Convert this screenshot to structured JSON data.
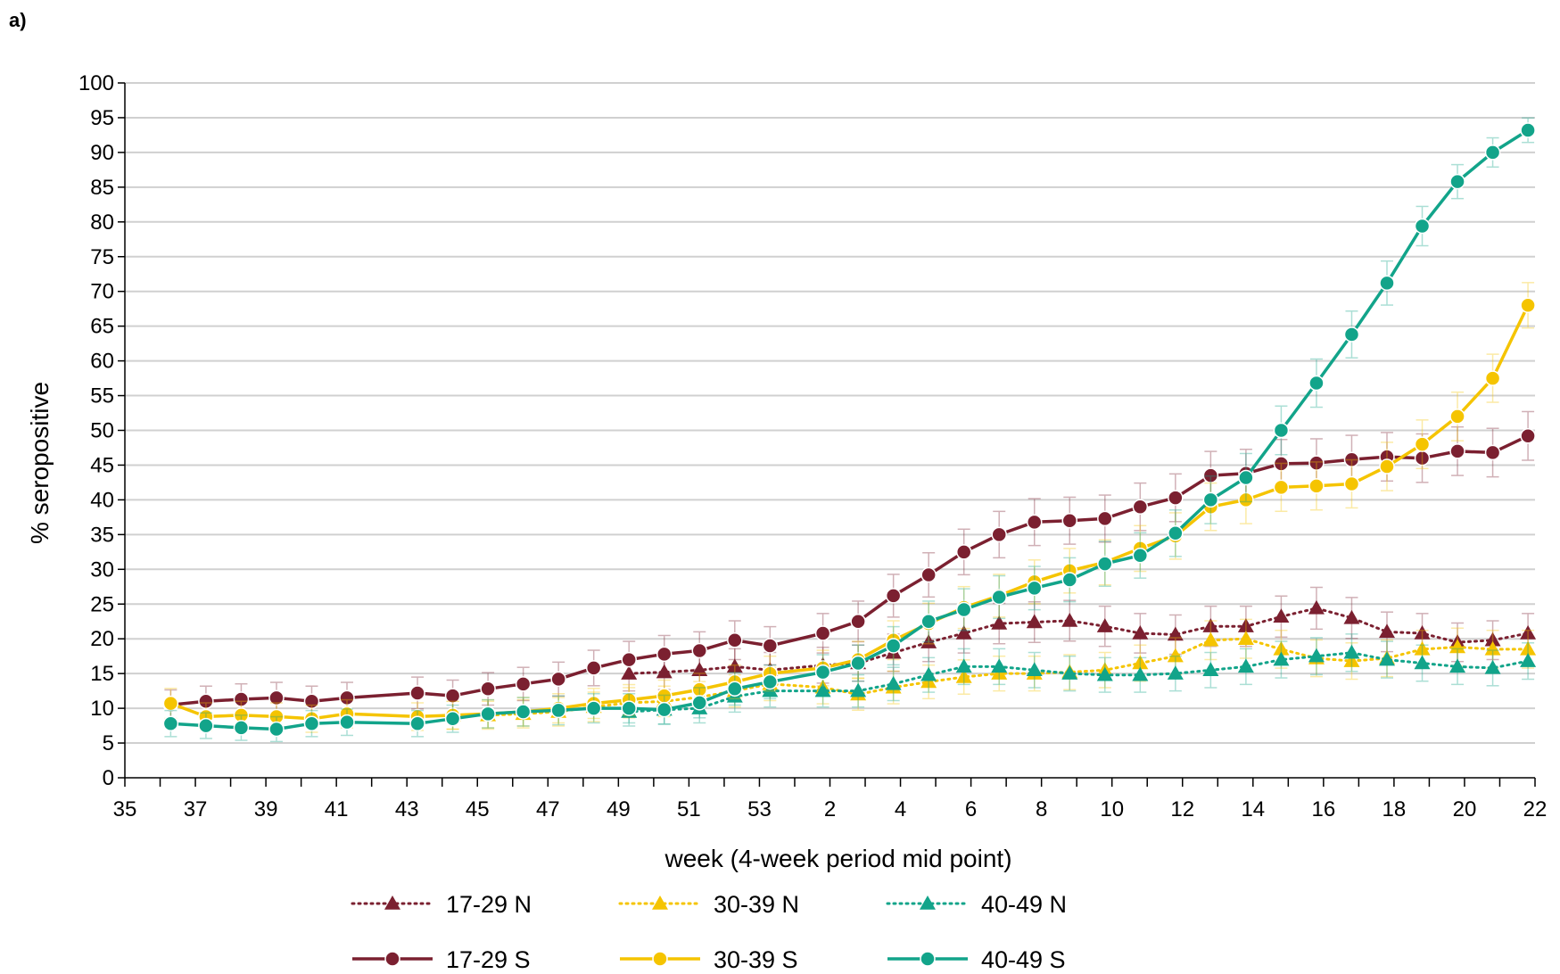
{
  "panel_label": "a)",
  "chart_data": {
    "type": "line",
    "title": "",
    "xlabel": "week (4-week period mid point)",
    "ylabel": "% seropositive",
    "ylim": [
      0,
      100
    ],
    "yticks": [
      0,
      5,
      10,
      15,
      20,
      25,
      30,
      35,
      40,
      45,
      50,
      55,
      60,
      65,
      70,
      75,
      80,
      85,
      90,
      95,
      100
    ],
    "xticks": [
      "35",
      "37",
      "39",
      "41",
      "43",
      "45",
      "47",
      "49",
      "51",
      "53",
      "2",
      "4",
      "6",
      "8",
      "10",
      "12",
      "14",
      "16",
      "18",
      "20",
      "22"
    ],
    "x_axis_note": "weeks run 35–53 then continue 1–22 of the following year",
    "grid": "horizontal",
    "legend_position": "bottom",
    "series": [
      {
        "name": "17-29 N",
        "color": "#7b2030",
        "line": "dotted",
        "marker": "triangle",
        "points": [
          [
            49.3,
            15.0
          ],
          [
            50.3,
            15.2
          ],
          [
            51.3,
            15.5
          ],
          [
            52.3,
            16.0
          ],
          [
            53.3,
            15.5
          ],
          [
            1.3,
            16.2
          ],
          [
            2.3,
            16.5
          ],
          [
            3.3,
            18.0
          ],
          [
            4.3,
            19.5
          ],
          [
            5.3,
            20.8
          ],
          [
            6.3,
            22.2
          ],
          [
            7.3,
            22.4
          ],
          [
            8.3,
            22.6
          ],
          [
            9.3,
            21.8
          ],
          [
            10.3,
            20.8
          ],
          [
            11.3,
            20.6
          ],
          [
            12.3,
            21.8
          ],
          [
            13.3,
            21.8
          ],
          [
            14.3,
            23.2
          ],
          [
            15.3,
            24.4
          ],
          [
            16.3,
            23.0
          ],
          [
            17.3,
            21.0
          ],
          [
            18.3,
            20.8
          ],
          [
            19.3,
            19.5
          ],
          [
            20.3,
            19.8
          ],
          [
            21.3,
            20.8
          ]
        ]
      },
      {
        "name": "30-39 N",
        "color": "#f5c400",
        "line": "dotted",
        "marker": "triangle",
        "points": [
          [
            44.3,
            9.0
          ],
          [
            45.3,
            9.0
          ],
          [
            46.3,
            9.2
          ],
          [
            47.3,
            9.5
          ],
          [
            48.3,
            10.2
          ],
          [
            49.3,
            10.8
          ],
          [
            50.3,
            11.0
          ],
          [
            51.3,
            11.6
          ],
          [
            52.3,
            12.5
          ],
          [
            53.3,
            13.5
          ],
          [
            1.3,
            13.0
          ],
          [
            2.3,
            12.0
          ],
          [
            3.3,
            13.0
          ],
          [
            4.3,
            13.8
          ],
          [
            5.3,
            14.5
          ],
          [
            6.3,
            15.0
          ],
          [
            7.3,
            15.0
          ],
          [
            8.3,
            15.2
          ],
          [
            9.3,
            15.5
          ],
          [
            10.3,
            16.5
          ],
          [
            11.3,
            17.5
          ],
          [
            12.3,
            19.8
          ],
          [
            13.3,
            20.0
          ],
          [
            14.3,
            18.5
          ],
          [
            15.3,
            17.2
          ],
          [
            16.3,
            16.8
          ],
          [
            17.3,
            17.2
          ],
          [
            18.3,
            18.5
          ],
          [
            19.3,
            18.8
          ],
          [
            20.3,
            18.5
          ],
          [
            21.3,
            18.5
          ]
        ]
      },
      {
        "name": "40-49 N",
        "color": "#12a48a",
        "line": "dotted",
        "marker": "triangle",
        "points": [
          [
            49.3,
            9.5
          ],
          [
            50.3,
            9.8
          ],
          [
            51.3,
            10.0
          ],
          [
            52.3,
            11.7
          ],
          [
            53.3,
            12.5
          ],
          [
            1.3,
            12.5
          ],
          [
            2.3,
            12.5
          ],
          [
            3.3,
            13.5
          ],
          [
            4.3,
            14.8
          ],
          [
            5.3,
            16.0
          ],
          [
            6.3,
            16.0
          ],
          [
            7.3,
            15.5
          ],
          [
            8.3,
            15.0
          ],
          [
            9.3,
            14.8
          ],
          [
            10.3,
            14.8
          ],
          [
            11.3,
            15.0
          ],
          [
            12.3,
            15.5
          ],
          [
            13.3,
            16.0
          ],
          [
            14.3,
            17.0
          ],
          [
            15.3,
            17.5
          ],
          [
            16.3,
            18.0
          ],
          [
            17.3,
            17.0
          ],
          [
            18.3,
            16.5
          ],
          [
            19.3,
            16.0
          ],
          [
            20.3,
            15.8
          ],
          [
            21.3,
            16.8
          ]
        ]
      },
      {
        "name": "17-29 S",
        "color": "#7b2030",
        "line": "solid",
        "marker": "circle",
        "points": [
          [
            36.3,
            10.5
          ],
          [
            37.3,
            11.0
          ],
          [
            38.3,
            11.3
          ],
          [
            39.3,
            11.5
          ],
          [
            40.3,
            11.0
          ],
          [
            41.3,
            11.5
          ],
          [
            43.3,
            12.2
          ],
          [
            44.3,
            11.8
          ],
          [
            45.3,
            12.8
          ],
          [
            46.3,
            13.5
          ],
          [
            47.3,
            14.2
          ],
          [
            48.3,
            15.8
          ],
          [
            49.3,
            17.0
          ],
          [
            50.3,
            17.8
          ],
          [
            51.3,
            18.3
          ],
          [
            52.3,
            19.8
          ],
          [
            53.3,
            19.0
          ],
          [
            1.3,
            20.8
          ],
          [
            2.3,
            22.5
          ],
          [
            3.3,
            26.2
          ],
          [
            4.3,
            29.2
          ],
          [
            5.3,
            32.5
          ],
          [
            6.3,
            35.0
          ],
          [
            7.3,
            36.8
          ],
          [
            8.3,
            37.0
          ],
          [
            9.3,
            37.3
          ],
          [
            10.3,
            39.0
          ],
          [
            11.3,
            40.3
          ],
          [
            12.3,
            43.5
          ],
          [
            13.3,
            43.8
          ],
          [
            14.3,
            45.2
          ],
          [
            15.3,
            45.3
          ],
          [
            16.3,
            45.8
          ],
          [
            17.3,
            46.2
          ],
          [
            18.3,
            46.0
          ],
          [
            19.3,
            47.0
          ],
          [
            20.3,
            46.8
          ],
          [
            21.3,
            49.2
          ]
        ]
      },
      {
        "name": "30-39 S",
        "color": "#f5c400",
        "line": "solid",
        "marker": "circle",
        "points": [
          [
            36.3,
            10.7
          ],
          [
            37.3,
            8.8
          ],
          [
            38.3,
            9.0
          ],
          [
            39.3,
            8.8
          ],
          [
            40.3,
            8.5
          ],
          [
            41.3,
            9.2
          ],
          [
            43.3,
            8.8
          ],
          [
            44.3,
            9.0
          ],
          [
            45.3,
            9.2
          ],
          [
            46.3,
            9.5
          ],
          [
            47.3,
            10.0
          ],
          [
            48.3,
            10.7
          ],
          [
            49.3,
            11.2
          ],
          [
            50.3,
            11.8
          ],
          [
            51.3,
            12.7
          ],
          [
            52.3,
            13.8
          ],
          [
            53.3,
            15.0
          ],
          [
            1.3,
            15.8
          ],
          [
            2.3,
            17.0
          ],
          [
            3.3,
            19.8
          ],
          [
            4.3,
            22.2
          ],
          [
            5.3,
            24.5
          ],
          [
            6.3,
            26.2
          ],
          [
            7.3,
            28.2
          ],
          [
            8.3,
            29.8
          ],
          [
            9.3,
            31.0
          ],
          [
            10.3,
            33.0
          ],
          [
            11.3,
            34.8
          ],
          [
            12.3,
            39.0
          ],
          [
            13.3,
            40.0
          ],
          [
            14.3,
            41.8
          ],
          [
            15.3,
            42.0
          ],
          [
            16.3,
            42.3
          ],
          [
            17.3,
            44.8
          ],
          [
            18.3,
            48.0
          ],
          [
            19.3,
            52.0
          ],
          [
            20.3,
            57.5
          ],
          [
            21.3,
            68.0
          ]
        ]
      },
      {
        "name": "40-49 S",
        "color": "#12a48a",
        "line": "solid",
        "marker": "circle",
        "points": [
          [
            36.3,
            7.8
          ],
          [
            37.3,
            7.5
          ],
          [
            38.3,
            7.2
          ],
          [
            39.3,
            7.0
          ],
          [
            40.3,
            7.8
          ],
          [
            41.3,
            8.0
          ],
          [
            43.3,
            7.8
          ],
          [
            44.3,
            8.5
          ],
          [
            45.3,
            9.2
          ],
          [
            46.3,
            9.5
          ],
          [
            47.3,
            9.7
          ],
          [
            48.3,
            10.0
          ],
          [
            49.3,
            10.0
          ],
          [
            50.3,
            9.8
          ],
          [
            51.3,
            10.8
          ],
          [
            52.3,
            12.8
          ],
          [
            53.3,
            13.8
          ],
          [
            1.3,
            15.2
          ],
          [
            2.3,
            16.5
          ],
          [
            3.3,
            19.0
          ],
          [
            4.3,
            22.5
          ],
          [
            5.3,
            24.2
          ],
          [
            6.3,
            26.0
          ],
          [
            7.3,
            27.3
          ],
          [
            8.3,
            28.5
          ],
          [
            9.3,
            30.8
          ],
          [
            10.3,
            32.0
          ],
          [
            11.3,
            35.2
          ],
          [
            12.3,
            40.0
          ],
          [
            13.3,
            43.2
          ],
          [
            14.3,
            50.0
          ],
          [
            15.3,
            56.8
          ],
          [
            16.3,
            63.8
          ],
          [
            17.3,
            71.2
          ],
          [
            18.3,
            79.4
          ],
          [
            19.3,
            85.8
          ],
          [
            20.3,
            90.0
          ],
          [
            21.3,
            93.2
          ]
        ]
      }
    ]
  }
}
